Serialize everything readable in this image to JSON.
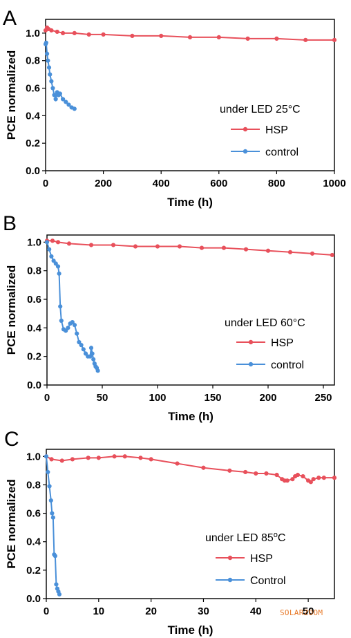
{
  "chart_data": [
    {
      "panel_label": "A",
      "type": "line",
      "xlabel": "Time (h)",
      "ylabel": "PCE normalized",
      "xlim": [
        0,
        1000
      ],
      "ylim": [
        0,
        1.1
      ],
      "x_ticks": [
        0,
        200,
        400,
        600,
        800,
        1000
      ],
      "y_ticks": [
        0.0,
        0.2,
        0.4,
        0.6,
        0.8,
        1.0
      ],
      "annotation": "under LED 25°C",
      "legend_position": "right, below annotation",
      "grid": false,
      "series": [
        {
          "name": "HSP",
          "color": "#e8505b",
          "x": [
            0,
            5,
            10,
            20,
            40,
            60,
            100,
            150,
            200,
            300,
            400,
            500,
            600,
            700,
            800,
            900,
            1000
          ],
          "y": [
            1.02,
            1.04,
            1.03,
            1.02,
            1.01,
            1.0,
            1.0,
            0.99,
            0.99,
            0.98,
            0.98,
            0.97,
            0.97,
            0.96,
            0.96,
            0.95,
            0.95
          ]
        },
        {
          "name": "control",
          "color": "#4a90d9",
          "x": [
            0,
            2,
            5,
            8,
            12,
            15,
            20,
            25,
            30,
            35,
            40,
            45,
            50,
            60,
            70,
            80,
            90,
            100
          ],
          "y": [
            0.92,
            0.93,
            0.85,
            0.8,
            0.75,
            0.7,
            0.65,
            0.6,
            0.55,
            0.52,
            0.57,
            0.55,
            0.56,
            0.52,
            0.5,
            0.48,
            0.46,
            0.45
          ]
        }
      ]
    },
    {
      "panel_label": "B",
      "type": "line",
      "xlabel": "Time (h)",
      "ylabel": "PCE normalized",
      "xlim": [
        0,
        260
      ],
      "ylim": [
        0,
        1.05
      ],
      "x_ticks": [
        0,
        50,
        100,
        150,
        200,
        250
      ],
      "y_ticks": [
        0.0,
        0.2,
        0.4,
        0.6,
        0.8,
        1.0
      ],
      "annotation": "under LED 60°C",
      "legend_position": "right, below annotation",
      "grid": false,
      "series": [
        {
          "name": "HSP",
          "color": "#e8505b",
          "x": [
            0,
            5,
            10,
            20,
            40,
            60,
            80,
            100,
            120,
            140,
            160,
            180,
            200,
            220,
            240,
            258
          ],
          "y": [
            1.01,
            1.01,
            1.0,
            0.99,
            0.98,
            0.98,
            0.97,
            0.97,
            0.97,
            0.96,
            0.96,
            0.95,
            0.94,
            0.93,
            0.92,
            0.91
          ]
        },
        {
          "name": "control",
          "color": "#4a90d9",
          "x": [
            0,
            2,
            4,
            6,
            8,
            10,
            11,
            12,
            13,
            15,
            17,
            19,
            21,
            23,
            25,
            27,
            29,
            31,
            33,
            35,
            37,
            39,
            40,
            41,
            42,
            43,
            44,
            45,
            46
          ],
          "y": [
            1.0,
            0.95,
            0.9,
            0.87,
            0.85,
            0.83,
            0.78,
            0.55,
            0.45,
            0.39,
            0.38,
            0.4,
            0.43,
            0.44,
            0.42,
            0.36,
            0.3,
            0.28,
            0.25,
            0.22,
            0.2,
            0.2,
            0.26,
            0.22,
            0.18,
            0.15,
            0.13,
            0.12,
            0.1
          ]
        }
      ]
    },
    {
      "panel_label": "C",
      "type": "line",
      "xlabel": "Time (h)",
      "ylabel": "PCE normalized",
      "xlim": [
        0,
        55
      ],
      "ylim": [
        0,
        1.05
      ],
      "x_ticks": [
        0,
        10,
        20,
        30,
        40,
        50
      ],
      "y_ticks": [
        0.0,
        0.2,
        0.4,
        0.6,
        0.8,
        1.0
      ],
      "annotation": "under LED 85oC",
      "legend_position": "right, below annotation",
      "grid": false,
      "series": [
        {
          "name": "HSP",
          "color": "#e8505b",
          "x": [
            0,
            1,
            3,
            5,
            8,
            10,
            13,
            15,
            18,
            20,
            25,
            30,
            35,
            38,
            40,
            42,
            44,
            45,
            45.5,
            46,
            47,
            47.5,
            48,
            49,
            50,
            50.5,
            51,
            52,
            53,
            55
          ],
          "y": [
            1.0,
            0.98,
            0.97,
            0.98,
            0.99,
            0.99,
            1.0,
            1.0,
            0.99,
            0.98,
            0.95,
            0.92,
            0.9,
            0.89,
            0.88,
            0.88,
            0.87,
            0.84,
            0.83,
            0.83,
            0.84,
            0.86,
            0.87,
            0.86,
            0.83,
            0.82,
            0.84,
            0.85,
            0.85,
            0.85
          ]
        },
        {
          "name": "Control",
          "color": "#4a90d9",
          "x": [
            0,
            0.3,
            0.6,
            0.9,
            1.1,
            1.3,
            1.5,
            1.7,
            1.9,
            2.1,
            2.3,
            2.5
          ],
          "y": [
            1.0,
            0.89,
            0.79,
            0.69,
            0.6,
            0.57,
            0.31,
            0.3,
            0.1,
            0.07,
            0.05,
            0.03
          ]
        }
      ]
    }
  ],
  "watermark": "SOLARZOOM"
}
